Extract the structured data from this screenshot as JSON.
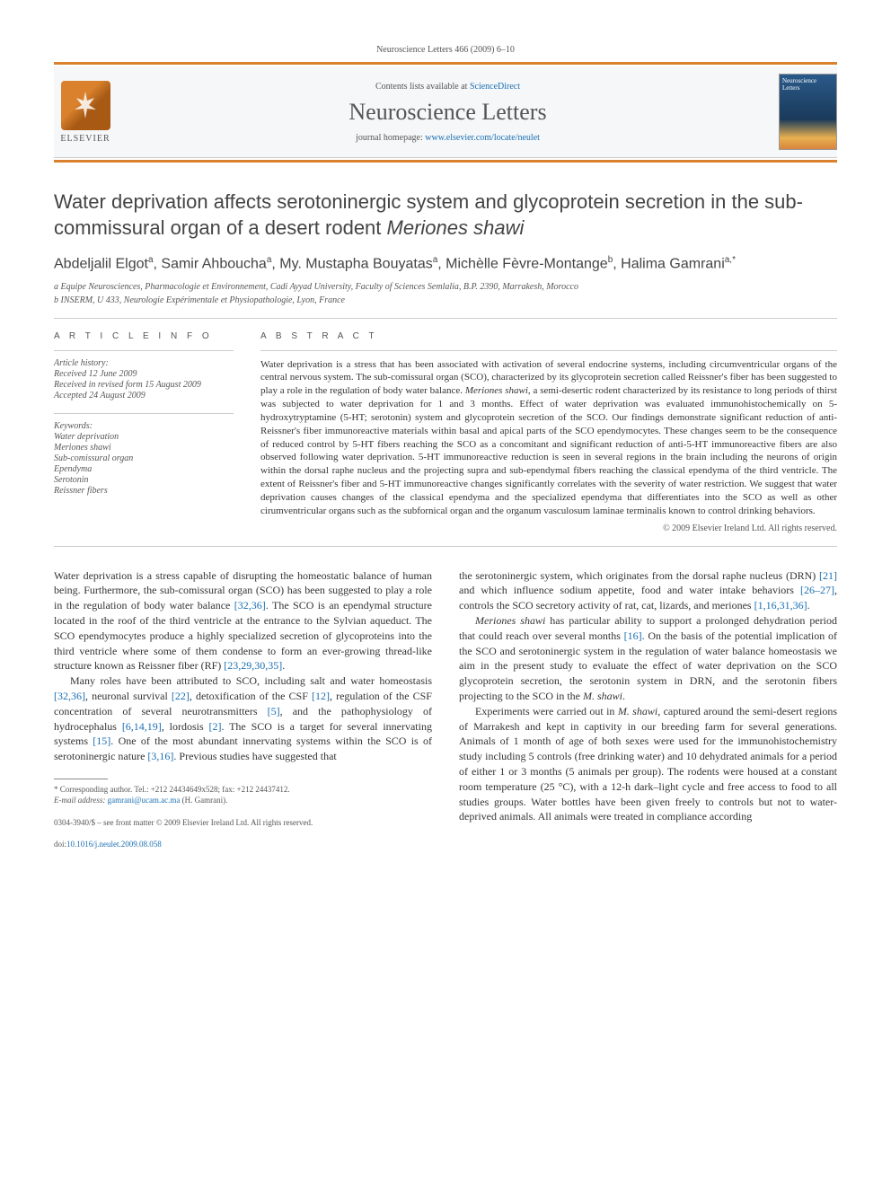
{
  "header": {
    "running_head": "Neuroscience Letters 466 (2009) 6–10",
    "contents_prefix": "Contents lists available at ",
    "contents_link": "ScienceDirect",
    "journal_title": "Neuroscience Letters",
    "homepage_prefix": "journal homepage: ",
    "homepage_link": "www.elsevier.com/locate/neulet",
    "publisher_label": "ELSEVIER",
    "cover_label": "Neuroscience Letters"
  },
  "article": {
    "title_plain": "Water deprivation affects serotoninergic system and glycoprotein secretion in the sub-commissural organ of a desert rodent ",
    "title_italic": "Meriones shawi",
    "authors_html": "Abdeljalil Elgot<sup>a</sup>, Samir Ahboucha<sup>a</sup>, My. Mustapha Bouyatas<sup>a</sup>, Michèlle Fèvre-Montange<sup>b</sup>, Halima Gamrani<sup>a,*</sup>",
    "affiliations": [
      "a Equipe Neurosciences, Pharmacologie et Environnement, Cadi Ayyad University, Faculty of Sciences Semlalia, B.P. 2390, Marrakesh, Morocco",
      "b INSERM, U 433, Neurologie Expérimentale et Physiopathologie, Lyon, France"
    ]
  },
  "info": {
    "section_label": "A R T I C L E   I N F O",
    "history_label": "Article history:",
    "history": [
      "Received 12 June 2009",
      "Received in revised form 15 August 2009",
      "Accepted 24 August 2009"
    ],
    "keywords_label": "Keywords:",
    "keywords": [
      "Water deprivation",
      "Meriones shawi",
      "Sub-comissural organ",
      "Ependyma",
      "Serotonin",
      "Reissner fibers"
    ]
  },
  "abstract": {
    "section_label": "A B S T R A C T",
    "text": "Water deprivation is a stress that has been associated with activation of several endocrine systems, including circumventricular organs of the central nervous system. The sub-comissural organ (SCO), characterized by its glycoprotein secretion called Reissner's fiber has been suggested to play a role in the regulation of body water balance. Meriones shawi, a semi-desertic rodent characterized by its resistance to long periods of thirst was subjected to water deprivation for 1 and 3 months. Effect of water deprivation was evaluated immunohistochemically on 5-hydroxytryptamine (5-HT; serotonin) system and glycoprotein secretion of the SCO. Our findings demonstrate significant reduction of anti-Reissner's fiber immunoreactive materials within basal and apical parts of the SCO ependymocytes. These changes seem to be the consequence of reduced control by 5-HT fibers reaching the SCO as a concomitant and significant reduction of anti-5-HT immunoreactive fibers are also observed following water deprivation. 5-HT immunoreactive reduction is seen in several regions in the brain including the neurons of origin within the dorsal raphe nucleus and the projecting supra and sub-ependymal fibers reaching the classical ependyma of the third ventricle. The extent of Reissner's fiber and 5-HT immunoreactive changes significantly correlates with the severity of water restriction. We suggest that water deprivation causes changes of the classical ependyma and the specialized ependyma that differentiates into the SCO as well as other cirumventricular organs such as the subfornical organ and the organum vasculosum laminae terminalis known to control drinking behaviors.",
    "copyright": "© 2009 Elsevier Ireland Ltd. All rights reserved."
  },
  "body": {
    "col1": [
      "Water deprivation is a stress capable of disrupting the homeostatic balance of human being. Furthermore, the sub-comissural organ (SCO) has been suggested to play a role in the regulation of body water balance [32,36]. The SCO is an ependymal structure located in the roof of the third ventricle at the entrance to the Sylvian aqueduct. The SCO ependymocytes produce a highly specialized secretion of glycoproteins into the third ventricle where some of them condense to form an ever-growing thread-like structure known as Reissner fiber (RF) [23,29,30,35].",
      "Many roles have been attributed to SCO, including salt and water homeostasis [32,36], neuronal survival [22], detoxification of the CSF [12], regulation of the CSF concentration of several neurotransmitters [5], and the pathophysiology of hydrocephalus [6,14,19], lordosis [2]. The SCO is a target for several innervating systems [15]. One of the most abundant innervating systems within the SCO is of serotoninergic nature [3,16]. Previous studies have suggested that"
    ],
    "col2": [
      "the serotoninergic system, which originates from the dorsal raphe nucleus (DRN) [21] and which influence sodium appetite, food and water intake behaviors [26–27], controls the SCO secretory activity of rat, cat, lizards, and meriones [1,16,31,36].",
      "Meriones shawi has particular ability to support a prolonged dehydration period that could reach over several months [16]. On the basis of the potential implication of the SCO and serotoninergic system in the regulation of water balance homeostasis we aim in the present study to evaluate the effect of water deprivation on the SCO glycoprotein secretion, the serotonin system in DRN, and the serotonin fibers projecting to the SCO in the M. shawi.",
      "Experiments were carried out in M. shawi, captured around the semi-desert regions of Marrakesh and kept in captivity in our breeding farm for several generations. Animals of 1 month of age of both sexes were used for the immunohistochemistry study including 5 controls (free drinking water) and 10 dehydrated animals for a period of either 1 or 3 months (5 animals per group). The rodents were housed at a constant room temperature (25 °C), with a 12-h dark–light cycle and free access to food to all studies groups. Water bottles have been given freely to controls but not to water-deprived animals. All animals were treated in compliance according"
    ],
    "refs_col1": [
      "[32,36]",
      "[23,29,30,35]",
      "[32,36]",
      "[22]",
      "[12]",
      "[5]",
      "[6,14,19]",
      "[2]",
      "[15]",
      "[3,16]"
    ],
    "refs_col2": [
      "[21]",
      "[26–27]",
      "[1,16,31,36]",
      "[16]"
    ]
  },
  "footnote": {
    "marker": "*",
    "text": "Corresponding author. Tel.: +212 24434649x528; fax: +212 24437412.",
    "email_label": "E-mail address: ",
    "email": "gamrani@ucam.ac.ma",
    "email_suffix": " (H. Gamrani)."
  },
  "footer": {
    "issn": "0304-3940/$ – see front matter © 2009 Elsevier Ireland Ltd. All rights reserved.",
    "doi_label": "doi:",
    "doi": "10.1016/j.neulet.2009.08.058"
  },
  "colors": {
    "accent": "#d9812c",
    "link": "#1a6fb3",
    "text": "#333333",
    "muted": "#555555"
  }
}
